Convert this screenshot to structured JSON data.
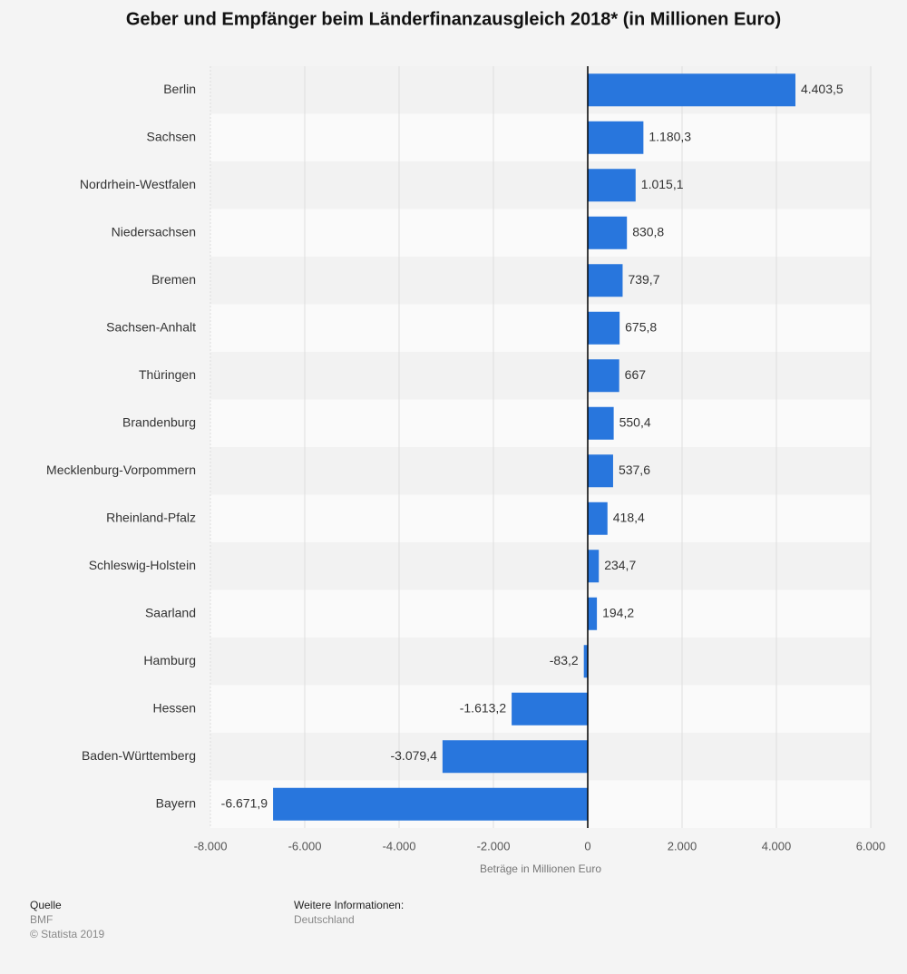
{
  "chart_data": {
    "type": "hbar",
    "title": "Geber und Empfänger beim Länderfinanzausgleich 2018* (in Millionen Euro)",
    "x_label": "Beträge in Millionen Euro",
    "categories": [
      "Berlin",
      "Sachsen",
      "Nordrhein-Westfalen",
      "Niedersachsen",
      "Bremen",
      "Sachsen-Anhalt",
      "Thüringen",
      "Brandenburg",
      "Mecklenburg-Vorpommern",
      "Rheinland-Pfalz",
      "Schleswig-Holstein",
      "Saarland",
      "Hamburg",
      "Hessen",
      "Baden-Württemberg",
      "Bayern"
    ],
    "values": [
      4403.5,
      1180.3,
      1015.1,
      830.8,
      739.7,
      675.8,
      667,
      550.4,
      537.6,
      418.4,
      234.7,
      194.2,
      -83.2,
      -1613.2,
      -3079.4,
      -6671.9
    ],
    "value_labels": [
      "4.403,5",
      "1.180,3",
      "1.015,1",
      "830,8",
      "739,7",
      "675,8",
      "667",
      "550,4",
      "537,6",
      "418,4",
      "234,7",
      "194,2",
      "-83,2",
      "-1.613,2",
      "-3.079,4",
      "-6.671,9"
    ],
    "color": "#2876dd",
    "xlim": [
      -8000,
      6000
    ],
    "xticks": [
      {
        "value": -8000,
        "label": "-8.000"
      },
      {
        "value": -6000,
        "label": "-6.000"
      },
      {
        "value": -4000,
        "label": "-4.000"
      },
      {
        "value": -2000,
        "label": "-2.000"
      },
      0,
      {
        "value": 2000,
        "label": "2.000"
      },
      {
        "value": 4000,
        "label": "4.000"
      },
      {
        "value": 6000,
        "label": "6.000"
      }
    ],
    "grid": true
  },
  "footer": {
    "source_title": "Quelle",
    "source": "BMF",
    "copyright": "© Statista 2019",
    "info_title": "Weitere Informationen:",
    "info": "Deutschland"
  }
}
